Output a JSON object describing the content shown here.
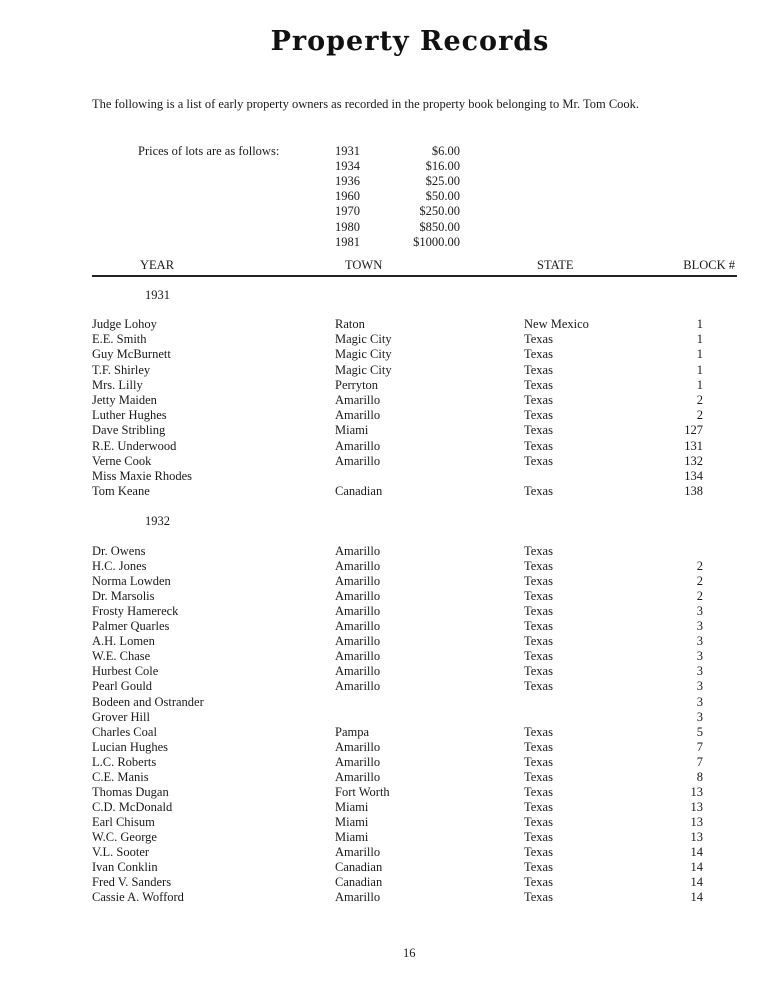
{
  "title": "Property Records",
  "intro": "The following is a list of early property owners as recorded in the property book belonging to Mr. Tom Cook.",
  "prices": {
    "label": "Prices of lots are as follows:",
    "rows": [
      {
        "year": "1931",
        "price": "$6.00"
      },
      {
        "year": "1934",
        "price": "$16.00"
      },
      {
        "year": "1936",
        "price": "$25.00"
      },
      {
        "year": "1960",
        "price": "$50.00"
      },
      {
        "year": "1970",
        "price": "$250.00"
      },
      {
        "year": "1980",
        "price": "$850.00"
      },
      {
        "year": "1981",
        "price": "$1000.00"
      }
    ]
  },
  "columns": {
    "year": "YEAR",
    "town": "TOWN",
    "state": "STATE",
    "block": "BLOCK #"
  },
  "groups": [
    {
      "year": "1931",
      "rows": [
        {
          "name": "Judge Lohoy",
          "town": "Raton",
          "state": "New Mexico",
          "block": "1"
        },
        {
          "name": "E.E. Smith",
          "town": "Magic City",
          "state": "Texas",
          "block": "1"
        },
        {
          "name": "Guy McBurnett",
          "town": "Magic City",
          "state": "Texas",
          "block": "1"
        },
        {
          "name": "T.F. Shirley",
          "town": "Magic City",
          "state": "Texas",
          "block": "1"
        },
        {
          "name": "Mrs. Lilly",
          "town": "Perryton",
          "state": "Texas",
          "block": "1"
        },
        {
          "name": "Jetty Maiden",
          "town": "Amarillo",
          "state": "Texas",
          "block": "2"
        },
        {
          "name": "Luther Hughes",
          "town": "Amarillo",
          "state": "Texas",
          "block": "2"
        },
        {
          "name": "Dave Stribling",
          "town": "Miami",
          "state": "Texas",
          "block": "127"
        },
        {
          "name": "R.E. Underwood",
          "town": "Amarillo",
          "state": "Texas",
          "block": "131"
        },
        {
          "name": "Verne Cook",
          "town": "Amarillo",
          "state": "Texas",
          "block": "132"
        },
        {
          "name": "Miss Maxie Rhodes",
          "town": "",
          "state": "",
          "block": "134"
        },
        {
          "name": "Tom Keane",
          "town": "Canadian",
          "state": "Texas",
          "block": "138"
        }
      ]
    },
    {
      "year": "1932",
      "rows": [
        {
          "name": "Dr. Owens",
          "town": "Amarillo",
          "state": "Texas",
          "block": ""
        },
        {
          "name": "H.C. Jones",
          "town": "Amarillo",
          "state": "Texas",
          "block": "2"
        },
        {
          "name": "Norma Lowden",
          "town": "Amarillo",
          "state": "Texas",
          "block": "2"
        },
        {
          "name": "Dr. Marsolis",
          "town": "Amarillo",
          "state": "Texas",
          "block": "2"
        },
        {
          "name": "Frosty Hamereck",
          "town": "Amarillo",
          "state": "Texas",
          "block": "3"
        },
        {
          "name": "Palmer Quarles",
          "town": "Amarillo",
          "state": "Texas",
          "block": "3"
        },
        {
          "name": "A.H. Lomen",
          "town": "Amarillo",
          "state": "Texas",
          "block": "3"
        },
        {
          "name": "W.E. Chase",
          "town": "Amarillo",
          "state": "Texas",
          "block": "3"
        },
        {
          "name": "Hurbest Cole",
          "town": "Amarillo",
          "state": "Texas",
          "block": "3"
        },
        {
          "name": "Pearl Gould",
          "town": "Amarillo",
          "state": "Texas",
          "block": "3"
        },
        {
          "name": "Bodeen and Ostrander",
          "town": "",
          "state": "",
          "block": "3"
        },
        {
          "name": "Grover Hill",
          "town": "",
          "state": "",
          "block": "3"
        },
        {
          "name": "Charles Coal",
          "town": "Pampa",
          "state": "Texas",
          "block": "5"
        },
        {
          "name": "Lucian Hughes",
          "town": "Amarillo",
          "state": "Texas",
          "block": "7"
        },
        {
          "name": "L.C. Roberts",
          "town": "Amarillo",
          "state": "Texas",
          "block": "7"
        },
        {
          "name": "C.E. Manis",
          "town": "Amarillo",
          "state": "Texas",
          "block": "8"
        },
        {
          "name": "Thomas Dugan",
          "town": "Fort Worth",
          "state": "Texas",
          "block": "13"
        },
        {
          "name": "C.D. McDonald",
          "town": "Miami",
          "state": "Texas",
          "block": "13"
        },
        {
          "name": "Earl Chisum",
          "town": "Miami",
          "state": "Texas",
          "block": "13"
        },
        {
          "name": "W.C. George",
          "town": "Miami",
          "state": "Texas",
          "block": "13"
        },
        {
          "name": "V.L. Sooter",
          "town": "Amarillo",
          "state": "Texas",
          "block": "14"
        },
        {
          "name": "Ivan Conklin",
          "town": "Canadian",
          "state": "Texas",
          "block": "14"
        },
        {
          "name": "Fred V. Sanders",
          "town": "Canadian",
          "state": "Texas",
          "block": "14"
        },
        {
          "name": "Cassie A. Wofford",
          "town": "Amarillo",
          "state": "Texas",
          "block": "14"
        }
      ]
    }
  ],
  "page_number": "16"
}
